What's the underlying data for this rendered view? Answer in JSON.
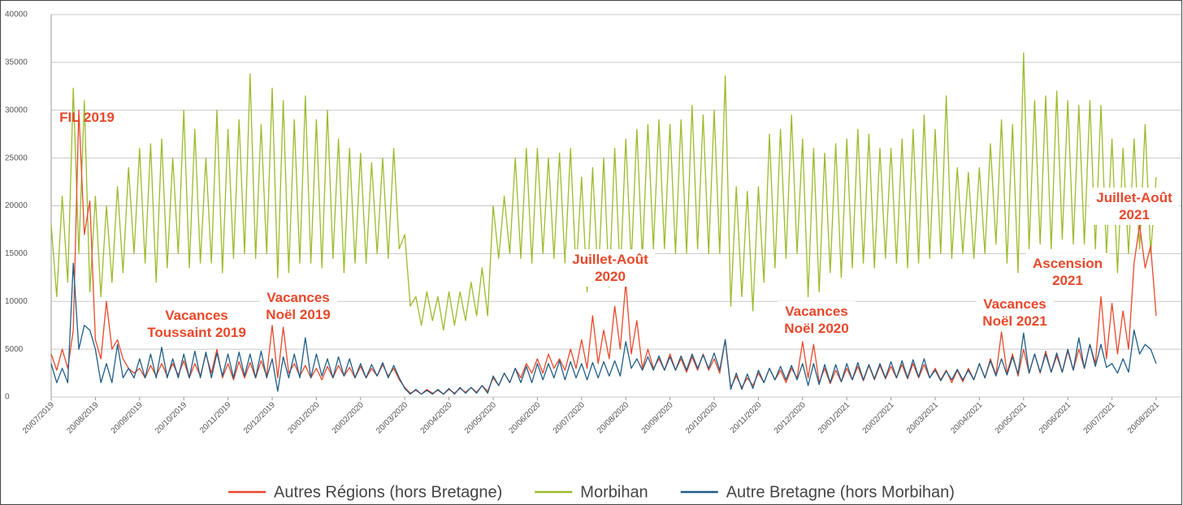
{
  "chart_data": {
    "type": "line",
    "categories": [
      "20/07/2019",
      null,
      null,
      null,
      null,
      null,
      null,
      null,
      "20/08/2019",
      null,
      null,
      null,
      null,
      null,
      null,
      null,
      "20/09/2019",
      null,
      null,
      null,
      null,
      null,
      null,
      null,
      "20/10/2019",
      null,
      null,
      null,
      null,
      null,
      null,
      null,
      "20/11/2019",
      null,
      null,
      null,
      null,
      null,
      null,
      null,
      "20/12/2019",
      null,
      null,
      null,
      null,
      null,
      null,
      null,
      "20/01/2020",
      null,
      null,
      null,
      null,
      null,
      null,
      null,
      "20/02/2020",
      null,
      null,
      null,
      null,
      null,
      null,
      null,
      "20/03/2020",
      null,
      null,
      null,
      null,
      null,
      null,
      null,
      "20/04/2020",
      null,
      null,
      null,
      null,
      null,
      null,
      null,
      "20/05/2020",
      null,
      null,
      null,
      null,
      null,
      null,
      null,
      "20/06/2020",
      null,
      null,
      null,
      null,
      null,
      null,
      null,
      "20/07/2020",
      null,
      null,
      null,
      null,
      null,
      null,
      null,
      "20/08/2020",
      null,
      null,
      null,
      null,
      null,
      null,
      null,
      "20/09/2020",
      null,
      null,
      null,
      null,
      null,
      null,
      null,
      "20/10/2020",
      null,
      null,
      null,
      null,
      null,
      null,
      null,
      "20/11/2020",
      null,
      null,
      null,
      null,
      null,
      null,
      null,
      "20/12/2020",
      null,
      null,
      null,
      null,
      null,
      null,
      null,
      "20/01/2021",
      null,
      null,
      null,
      null,
      null,
      null,
      null,
      "20/02/2021",
      null,
      null,
      null,
      null,
      null,
      null,
      null,
      "20/03/2021",
      null,
      null,
      null,
      null,
      null,
      null,
      null,
      "20/04/2021",
      null,
      null,
      null,
      null,
      null,
      null,
      null,
      "20/05/2021",
      null,
      null,
      null,
      null,
      null,
      null,
      null,
      "20/06/2021",
      null,
      null,
      null,
      null,
      null,
      null,
      null,
      "20/07/2021",
      null,
      null,
      null,
      null,
      null,
      null,
      null,
      "20/08/2021"
    ],
    "series": [
      {
        "name": "Morbihan",
        "color": "#9bbb2a",
        "values": [
          18000,
          10500,
          21000,
          12000,
          32300,
          15000,
          31000,
          11000,
          21000,
          10500,
          20000,
          12000,
          22000,
          13000,
          24000,
          15000,
          26000,
          14000,
          26500,
          12000,
          27000,
          13500,
          25000,
          15000,
          30000,
          13500,
          28000,
          14000,
          25000,
          14000,
          30000,
          13000,
          28000,
          14500,
          29000,
          15000,
          33800,
          14500,
          28500,
          15000,
          32300,
          12500,
          31000,
          13000,
          29000,
          14000,
          31500,
          14000,
          29000,
          13500,
          30000,
          14500,
          27000,
          13000,
          26000,
          14000,
          25500,
          14000,
          24500,
          15000,
          25000,
          14500,
          26000,
          15500,
          17000,
          9500,
          10500,
          7500,
          11000,
          8000,
          10500,
          7000,
          11000,
          7500,
          11000,
          8000,
          12000,
          8500,
          13500,
          8500,
          20000,
          14500,
          21000,
          15000,
          25000,
          14500,
          26000,
          14000,
          26000,
          15000,
          25000,
          14500,
          25500,
          14000,
          26000,
          13000,
          23000,
          11000,
          24000,
          12000,
          25000,
          11500,
          26000,
          12500,
          27000,
          14000,
          28000,
          14500,
          28500,
          15500,
          29000,
          15500,
          28500,
          15000,
          29000,
          15000,
          30500,
          15500,
          29500,
          15000,
          30000,
          15000,
          33600,
          9500,
          22000,
          10500,
          21500,
          9000,
          22000,
          12000,
          27500,
          13500,
          28000,
          14500,
          29500,
          15000,
          27000,
          10500,
          26000,
          11000,
          25500,
          13000,
          26500,
          12500,
          27000,
          13500,
          28000,
          14000,
          27500,
          13500,
          26000,
          14500,
          26000,
          14000,
          27000,
          13500,
          28000,
          14000,
          29500,
          14500,
          28000,
          15000,
          31500,
          14500,
          24000,
          15000,
          23500,
          14500,
          24000,
          15000,
          26500,
          16000,
          29000,
          14000,
          28500,
          13000,
          36000,
          15500,
          31000,
          16000,
          31500,
          15500,
          32000,
          16500,
          31000,
          16000,
          30500,
          16000,
          31000,
          15500,
          30500,
          15000,
          27000,
          13000,
          26000,
          15000,
          27000,
          15500,
          28500,
          15000,
          23000
        ]
      },
      {
        "name": "Autres Régions (hors Bretagne)",
        "color": "#e8482a",
        "values": [
          4500,
          2800,
          5000,
          3000,
          7000,
          30000,
          17000,
          20500,
          6000,
          4000,
          10000,
          5000,
          6000,
          4000,
          3000,
          2500,
          3000,
          2000,
          3300,
          2200,
          3500,
          2200,
          3500,
          2300,
          3800,
          2000,
          3500,
          2200,
          4500,
          2500,
          5000,
          2000,
          3500,
          1800,
          3700,
          2000,
          3600,
          2000,
          3800,
          2200,
          7500,
          2000,
          7300,
          2500,
          3500,
          2200,
          3300,
          2000,
          3000,
          1800,
          3200,
          2000,
          3300,
          2200,
          3100,
          2000,
          3200,
          2000,
          3000,
          2200,
          3400,
          2200,
          3000,
          1800,
          1000,
          400,
          700,
          300,
          800,
          400,
          700,
          300,
          800,
          400,
          900,
          500,
          1000,
          500,
          1200,
          600,
          2000,
          1200,
          2500,
          1500,
          3000,
          2000,
          3500,
          2500,
          4000,
          2500,
          4500,
          3000,
          4000,
          2800,
          5000,
          3000,
          6000,
          3000,
          8500,
          3500,
          7000,
          4000,
          9500,
          5000,
          12000,
          4500,
          8000,
          3000,
          5000,
          3000,
          4000,
          2800,
          4500,
          2800,
          4000,
          2600,
          4200,
          2800,
          4500,
          2800,
          4000,
          2500,
          6000,
          1000,
          2200,
          1000,
          2000,
          1200,
          2500,
          1500,
          3000,
          1800,
          2800,
          1500,
          3000,
          2000,
          5800,
          2000,
          5500,
          1500,
          3000,
          1400,
          2800,
          1600,
          3000,
          1800,
          3200,
          1700,
          3300,
          1800,
          3300,
          1900,
          3200,
          2000,
          3400,
          1900,
          3500,
          2000,
          3400,
          2000,
          3000,
          1800,
          2800,
          1500,
          2800,
          1600,
          3000,
          1800,
          3500,
          2000,
          4000,
          2300,
          6800,
          2500,
          4500,
          2200,
          5000,
          2500,
          4500,
          2500,
          4800,
          2600,
          4300,
          2600,
          4800,
          2800,
          5000,
          3000,
          5500,
          3500,
          10500,
          4000,
          9800,
          4500,
          9000,
          5000,
          14000,
          18000,
          13500,
          15800,
          8500
        ]
      },
      {
        "name": "Autre Bretagne (hors Morbihan)",
        "color": "#1f5d87",
        "values": [
          3500,
          1500,
          3000,
          1500,
          14000,
          5000,
          7500,
          7000,
          5000,
          1500,
          3500,
          1500,
          5500,
          2000,
          3000,
          2000,
          4000,
          2000,
          4500,
          2000,
          5200,
          2000,
          4000,
          2000,
          4500,
          2000,
          4800,
          2000,
          4700,
          2000,
          4600,
          2200,
          4500,
          2000,
          4700,
          2200,
          4500,
          2000,
          4800,
          2000,
          4000,
          600,
          4200,
          2000,
          4500,
          2000,
          6200,
          2000,
          4500,
          2200,
          4000,
          2000,
          4200,
          2200,
          4000,
          2000,
          3500,
          2000,
          3400,
          2200,
          3600,
          2000,
          3300,
          2000,
          900,
          300,
          800,
          300,
          700,
          300,
          800,
          300,
          900,
          300,
          1000,
          400,
          1000,
          400,
          1200,
          400,
          2200,
          1200,
          2500,
          1500,
          3000,
          1500,
          3200,
          1500,
          3500,
          1800,
          3500,
          2000,
          3800,
          1800,
          3700,
          2000,
          3500,
          1800,
          3600,
          2000,
          3700,
          2200,
          3800,
          2200,
          5800,
          3000,
          4000,
          2800,
          4200,
          2800,
          4300,
          2800,
          4200,
          2800,
          4300,
          2800,
          4500,
          3000,
          4400,
          3000,
          4600,
          2800,
          6000,
          800,
          2500,
          800,
          2400,
          900,
          2800,
          1500,
          3000,
          1800,
          3200,
          1800,
          3300,
          1800,
          3500,
          1200,
          3500,
          1300,
          3400,
          1500,
          3400,
          1600,
          3500,
          1800,
          3600,
          1800,
          3400,
          1900,
          3500,
          2000,
          3700,
          2000,
          3800,
          2000,
          3900,
          2100,
          4000,
          2000,
          2800,
          1700,
          2700,
          1800,
          2900,
          1800,
          2800,
          1800,
          3500,
          2000,
          3800,
          2200,
          4000,
          2300,
          4200,
          2400,
          6700,
          2500,
          4500,
          2600,
          4500,
          2600,
          4600,
          2600,
          5000,
          2800,
          6200,
          3000,
          5500,
          3200,
          5500,
          3100,
          3500,
          2500,
          4000,
          2600,
          7000,
          4500,
          5500,
          5000,
          3500
        ]
      }
    ],
    "ylim": [
      0,
      40000
    ],
    "yticks": [
      0,
      5000,
      10000,
      15000,
      20000,
      25000,
      30000,
      35000,
      40000
    ],
    "grid": true,
    "legend": "bottom",
    "legend_order": [
      1,
      0,
      2
    ],
    "annotations": [
      [
        "FIL 2019"
      ],
      [
        "Vacances",
        "Toussaint 2019"
      ],
      [
        "Vacances",
        "Noël 2019"
      ],
      [
        "Juillet-Août",
        "2020"
      ],
      [
        "Vacances",
        "Noël 2020"
      ],
      [
        "Vacances",
        "Noël 2021"
      ],
      [
        "Ascension",
        "2021"
      ],
      [
        "Juillet-Août",
        "2021"
      ]
    ],
    "annotation_color": "#e8482a"
  }
}
